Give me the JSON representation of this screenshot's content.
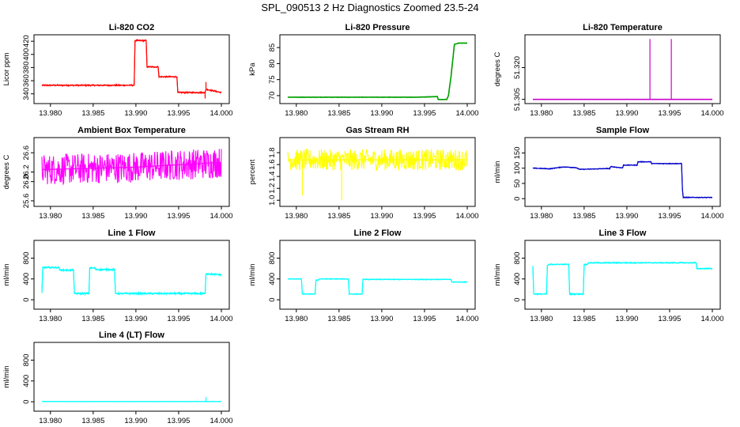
{
  "title": "SPL_090513  2 Hz Diagnostics Zoomed 23.5-24",
  "x_axis": {
    "range": [
      13.979,
      14.0
    ],
    "ticks": [
      13.98,
      13.985,
      13.99,
      13.995,
      14.0
    ],
    "tick_labels": [
      "13.980",
      "13.985",
      "13.990",
      "13.995",
      "14.000"
    ]
  },
  "chart_data": [
    {
      "type": "line",
      "title": "Li-820 CO2",
      "ylabel": "Licor ppm",
      "color": "#ff0000",
      "ylim": [
        330,
        425
      ],
      "yticks": [
        340,
        360,
        380,
        400,
        420
      ],
      "noise": 1.2,
      "points": [
        [
          13.979,
          353
        ],
        [
          13.9898,
          353
        ],
        [
          13.9899,
          421
        ],
        [
          13.9912,
          421
        ],
        [
          13.9913,
          381
        ],
        [
          13.9926,
          381
        ],
        [
          13.9927,
          366
        ],
        [
          13.9948,
          366
        ],
        [
          13.9949,
          342
        ],
        [
          13.9981,
          342
        ],
        [
          13.9982,
          347
        ],
        [
          14.0,
          342
        ]
      ],
      "spikes": [
        [
          13.9982,
          358
        ],
        [
          13.9981,
          333
        ]
      ]
    },
    {
      "type": "line",
      "title": "Li-820 Pressure",
      "ylabel": "kPa",
      "color": "#00a000",
      "ylim": [
        68.5,
        88
      ],
      "yticks": [
        70,
        75,
        80,
        85
      ],
      "noise": 0.05,
      "points": [
        [
          13.979,
          69.5
        ],
        [
          13.994,
          69.5
        ],
        [
          13.9965,
          69.7
        ],
        [
          13.9966,
          68.8
        ],
        [
          13.9976,
          68.8
        ],
        [
          13.9978,
          70
        ],
        [
          13.9981,
          76
        ],
        [
          13.9985,
          86
        ],
        [
          13.999,
          86.4
        ],
        [
          14.0,
          86.4
        ]
      ],
      "spikes": []
    },
    {
      "type": "line",
      "title": "Li-820 Temperature",
      "ylabel": "degrees C",
      "color": "#cc00cc",
      "ylim": [
        51.3045,
        51.334
      ],
      "yticks": [
        51.305,
        51.32
      ],
      "ytick_labels": [
        "51.305",
        "51.320"
      ],
      "noise": 0,
      "points": [
        [
          13.979,
          51.305
        ],
        [
          14.0,
          51.305
        ]
      ],
      "spikes": [
        [
          13.9927,
          51.3335
        ],
        [
          13.9952,
          51.3335
        ]
      ]
    },
    {
      "type": "line",
      "title": "Ambient Box Temperature",
      "ylabel": "degrees C",
      "color": "#ff00ff",
      "ylim": [
        25.55,
        26.85
      ],
      "yticks": [
        25.6,
        26.0,
        26.2,
        26.6
      ],
      "ytick_labels": [
        "25.6",
        "26.0",
        "26.2",
        "26.6"
      ],
      "noise": 0.32,
      "points": [
        [
          13.979,
          26.25
        ],
        [
          13.99,
          26.3
        ],
        [
          14.0,
          26.4
        ]
      ],
      "spikes": []
    },
    {
      "type": "line",
      "title": "Gas Stream RH",
      "ylabel": "percent",
      "color": "#ffff00",
      "ylim": [
        0.95,
        2.0
      ],
      "yticks": [
        1.0,
        1.2,
        1.4,
        1.6,
        1.8
      ],
      "ytick_labels": [
        "1.0",
        "1.2",
        "1.4",
        "1.6",
        "1.8"
      ],
      "noise": 0.18,
      "points": [
        [
          13.979,
          1.68
        ],
        [
          14.0,
          1.68
        ]
      ],
      "spikes": [
        [
          13.9853,
          1.0
        ],
        [
          13.9807,
          1.08
        ]
      ]
    },
    {
      "type": "line",
      "title": "Sample Flow",
      "ylabel": "ml/min",
      "color": "#0000cc",
      "ylim": [
        -15,
        190
      ],
      "yticks": [
        0,
        50,
        100,
        150
      ],
      "noise": 1.5,
      "points": [
        [
          13.979,
          100
        ],
        [
          13.981,
          98
        ],
        [
          13.9825,
          104
        ],
        [
          13.984,
          102
        ],
        [
          13.9845,
          96
        ],
        [
          13.988,
          99
        ],
        [
          13.9881,
          105
        ],
        [
          13.9895,
          101
        ],
        [
          13.9896,
          110
        ],
        [
          13.9912,
          110
        ],
        [
          13.9913,
          121
        ],
        [
          13.9928,
          121
        ],
        [
          13.9929,
          115
        ],
        [
          13.9964,
          115
        ],
        [
          13.9965,
          30
        ],
        [
          13.9966,
          4
        ],
        [
          14.0,
          4
        ]
      ],
      "spikes": []
    },
    {
      "type": "line",
      "title": "Line 1 Flow",
      "ylabel": "ml/min",
      "color": "#00ffff",
      "ylim": [
        -120,
        1080
      ],
      "yticks": [
        0,
        400,
        800
      ],
      "noise": 18,
      "points": [
        [
          13.979,
          130
        ],
        [
          13.9791,
          620
        ],
        [
          13.981,
          620
        ],
        [
          13.9811,
          570
        ],
        [
          13.9827,
          570
        ],
        [
          13.9828,
          120
        ],
        [
          13.9845,
          120
        ],
        [
          13.9846,
          610
        ],
        [
          13.9852,
          610
        ],
        [
          13.9853,
          580
        ],
        [
          13.9875,
          580
        ],
        [
          13.9876,
          120
        ],
        [
          13.9981,
          120
        ],
        [
          13.9982,
          500
        ],
        [
          14.0,
          480
        ]
      ],
      "spikes": []
    },
    {
      "type": "line",
      "title": "Line 2 Flow",
      "ylabel": "ml/min",
      "color": "#00ffff",
      "ylim": [
        -120,
        1080
      ],
      "yticks": [
        0,
        400,
        800
      ],
      "noise": 8,
      "points": [
        [
          13.979,
          400
        ],
        [
          13.9806,
          400
        ],
        [
          13.9807,
          110
        ],
        [
          13.9822,
          110
        ],
        [
          13.9823,
          380
        ],
        [
          13.9826,
          380
        ],
        [
          13.9827,
          400
        ],
        [
          13.9861,
          400
        ],
        [
          13.9862,
          110
        ],
        [
          13.9877,
          110
        ],
        [
          13.9878,
          390
        ],
        [
          13.9981,
          390
        ],
        [
          13.9982,
          340
        ],
        [
          14.0,
          340
        ]
      ],
      "spikes": []
    },
    {
      "type": "line",
      "title": "Line 3 Flow",
      "ylabel": "ml/min",
      "color": "#00ffff",
      "ylim": [
        -120,
        1080
      ],
      "yticks": [
        0,
        400,
        800
      ],
      "noise": 12,
      "points": [
        [
          13.979,
          650
        ],
        [
          13.9791,
          110
        ],
        [
          13.9806,
          110
        ],
        [
          13.9807,
          660
        ],
        [
          13.981,
          680
        ],
        [
          13.9832,
          680
        ],
        [
          13.9833,
          110
        ],
        [
          13.9849,
          110
        ],
        [
          13.985,
          680
        ],
        [
          13.9854,
          680
        ],
        [
          13.9855,
          710
        ],
        [
          13.9981,
          710
        ],
        [
          13.9982,
          600
        ],
        [
          14.0,
          600
        ]
      ],
      "spikes": []
    },
    {
      "type": "line",
      "title": "Line 4 (LT) Flow",
      "ylabel": "ml/min",
      "color": "#00ffff",
      "ylim": [
        -120,
        1080
      ],
      "yticks": [
        0,
        400,
        800
      ],
      "noise": 1,
      "points": [
        [
          13.979,
          5
        ],
        [
          14.0,
          5
        ]
      ],
      "spikes": [
        [
          13.9982,
          90
        ]
      ]
    }
  ]
}
